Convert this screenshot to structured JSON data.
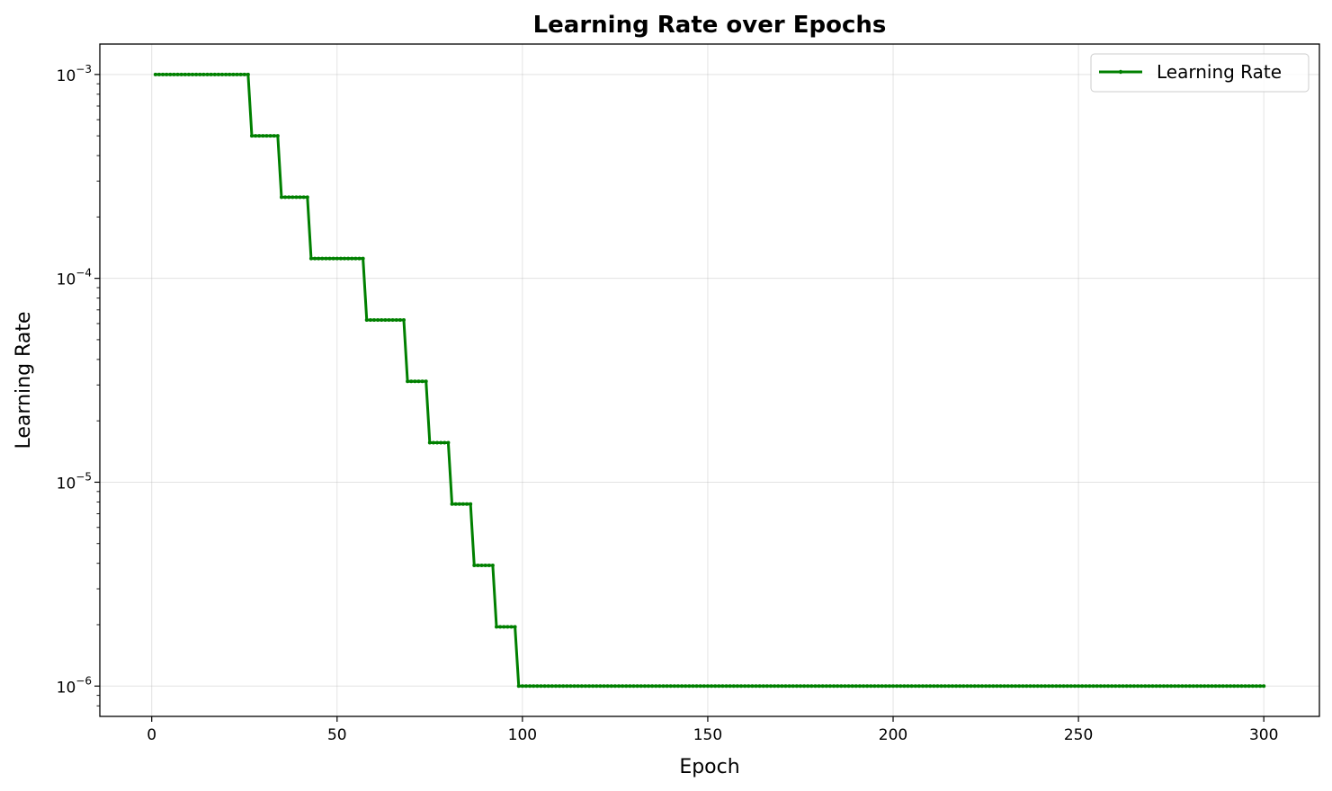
{
  "chart_data": {
    "type": "line",
    "title": "Learning Rate over Epochs",
    "xlabel": "Epoch",
    "ylabel": "Learning Rate",
    "xlim": [
      -14,
      315
    ],
    "ylim": [
      7.1e-07,
      0.00141
    ],
    "yscale": "log",
    "grid": true,
    "legend_position": "top-right",
    "xticks": [
      0,
      50,
      100,
      150,
      200,
      250,
      300
    ],
    "yticks": [
      {
        "value": 1e-06,
        "base": "10",
        "exp": "−6"
      },
      {
        "value": 1e-05,
        "base": "10",
        "exp": "−5"
      },
      {
        "value": 0.0001,
        "base": "10",
        "exp": "−4"
      },
      {
        "value": 0.001,
        "base": "10",
        "exp": "−3"
      }
    ],
    "series": [
      {
        "name": "Learning Rate",
        "color": "#008000",
        "epochs_start": 1,
        "epochs_end": 300,
        "steps": [
          {
            "from": 1,
            "to": 26,
            "value": 0.001
          },
          {
            "from": 27,
            "to": 34,
            "value": 0.0005
          },
          {
            "from": 35,
            "to": 42,
            "value": 0.00025
          },
          {
            "from": 43,
            "to": 57,
            "value": 0.000125
          },
          {
            "from": 58,
            "to": 68,
            "value": 6.25e-05
          },
          {
            "from": 69,
            "to": 74,
            "value": 3.125e-05
          },
          {
            "from": 75,
            "to": 80,
            "value": 1.5625e-05
          },
          {
            "from": 81,
            "to": 86,
            "value": 7.8125e-06
          },
          {
            "from": 87,
            "to": 92,
            "value": 3.90625e-06
          },
          {
            "from": 93,
            "to": 98,
            "value": 1.953125e-06
          },
          {
            "from": 99,
            "to": 300,
            "value": 1e-06
          }
        ]
      }
    ]
  }
}
